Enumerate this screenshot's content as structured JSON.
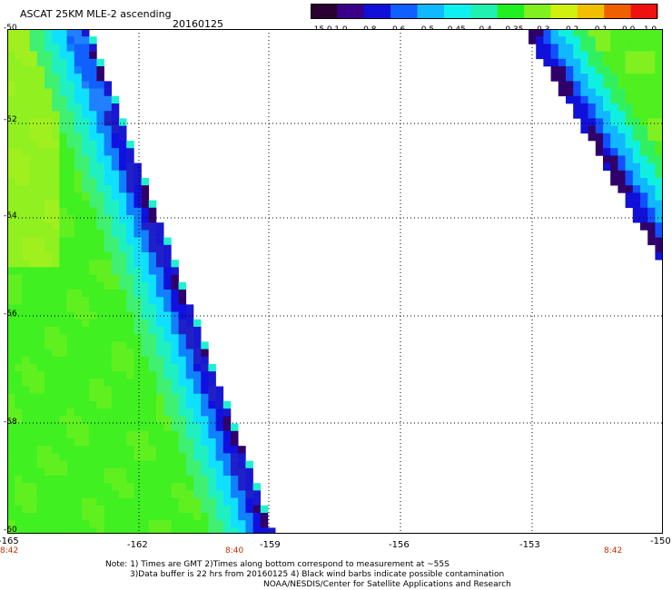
{
  "title": "ASCAT 25KM MLE-2 ascending",
  "date": "20160125",
  "legend": {
    "labels": [
      "-15.0",
      "-1.0",
      "-0.8",
      "-0.6",
      "-0.5",
      "-0.45",
      "-0.4",
      "-0.35",
      "-0.3",
      "-0.2",
      "-0.1",
      "0.0",
      "1.0"
    ],
    "colors": [
      "#2a0030",
      "#3a008a",
      "#1010d8",
      "#1060ff",
      "#10b8ff",
      "#10f0f0",
      "#20f0b0",
      "#20f020",
      "#80f020",
      "#d0f010",
      "#f0c000",
      "#f06000",
      "#f01010"
    ]
  },
  "map": {
    "lat_labels": [
      "-50",
      "-52",
      "-54",
      "-56",
      "-58",
      "-60"
    ],
    "lon_labels": [
      "-165",
      "-162",
      "-159",
      "-156",
      "-153",
      "-150"
    ],
    "time_labels": [
      "8:42",
      "8:40",
      "8:42"
    ]
  },
  "notes": {
    "line1": "Note: 1) Times are GMT 2)Times along bottom correspond to measurement at ~55S",
    "line2": "3)Data buffer is 22 hrs from 20160125 4) Black wind barbs indicate possible contamination",
    "line3": "NOAA/NESDIS/Center for Satellite Applications and Research"
  }
}
